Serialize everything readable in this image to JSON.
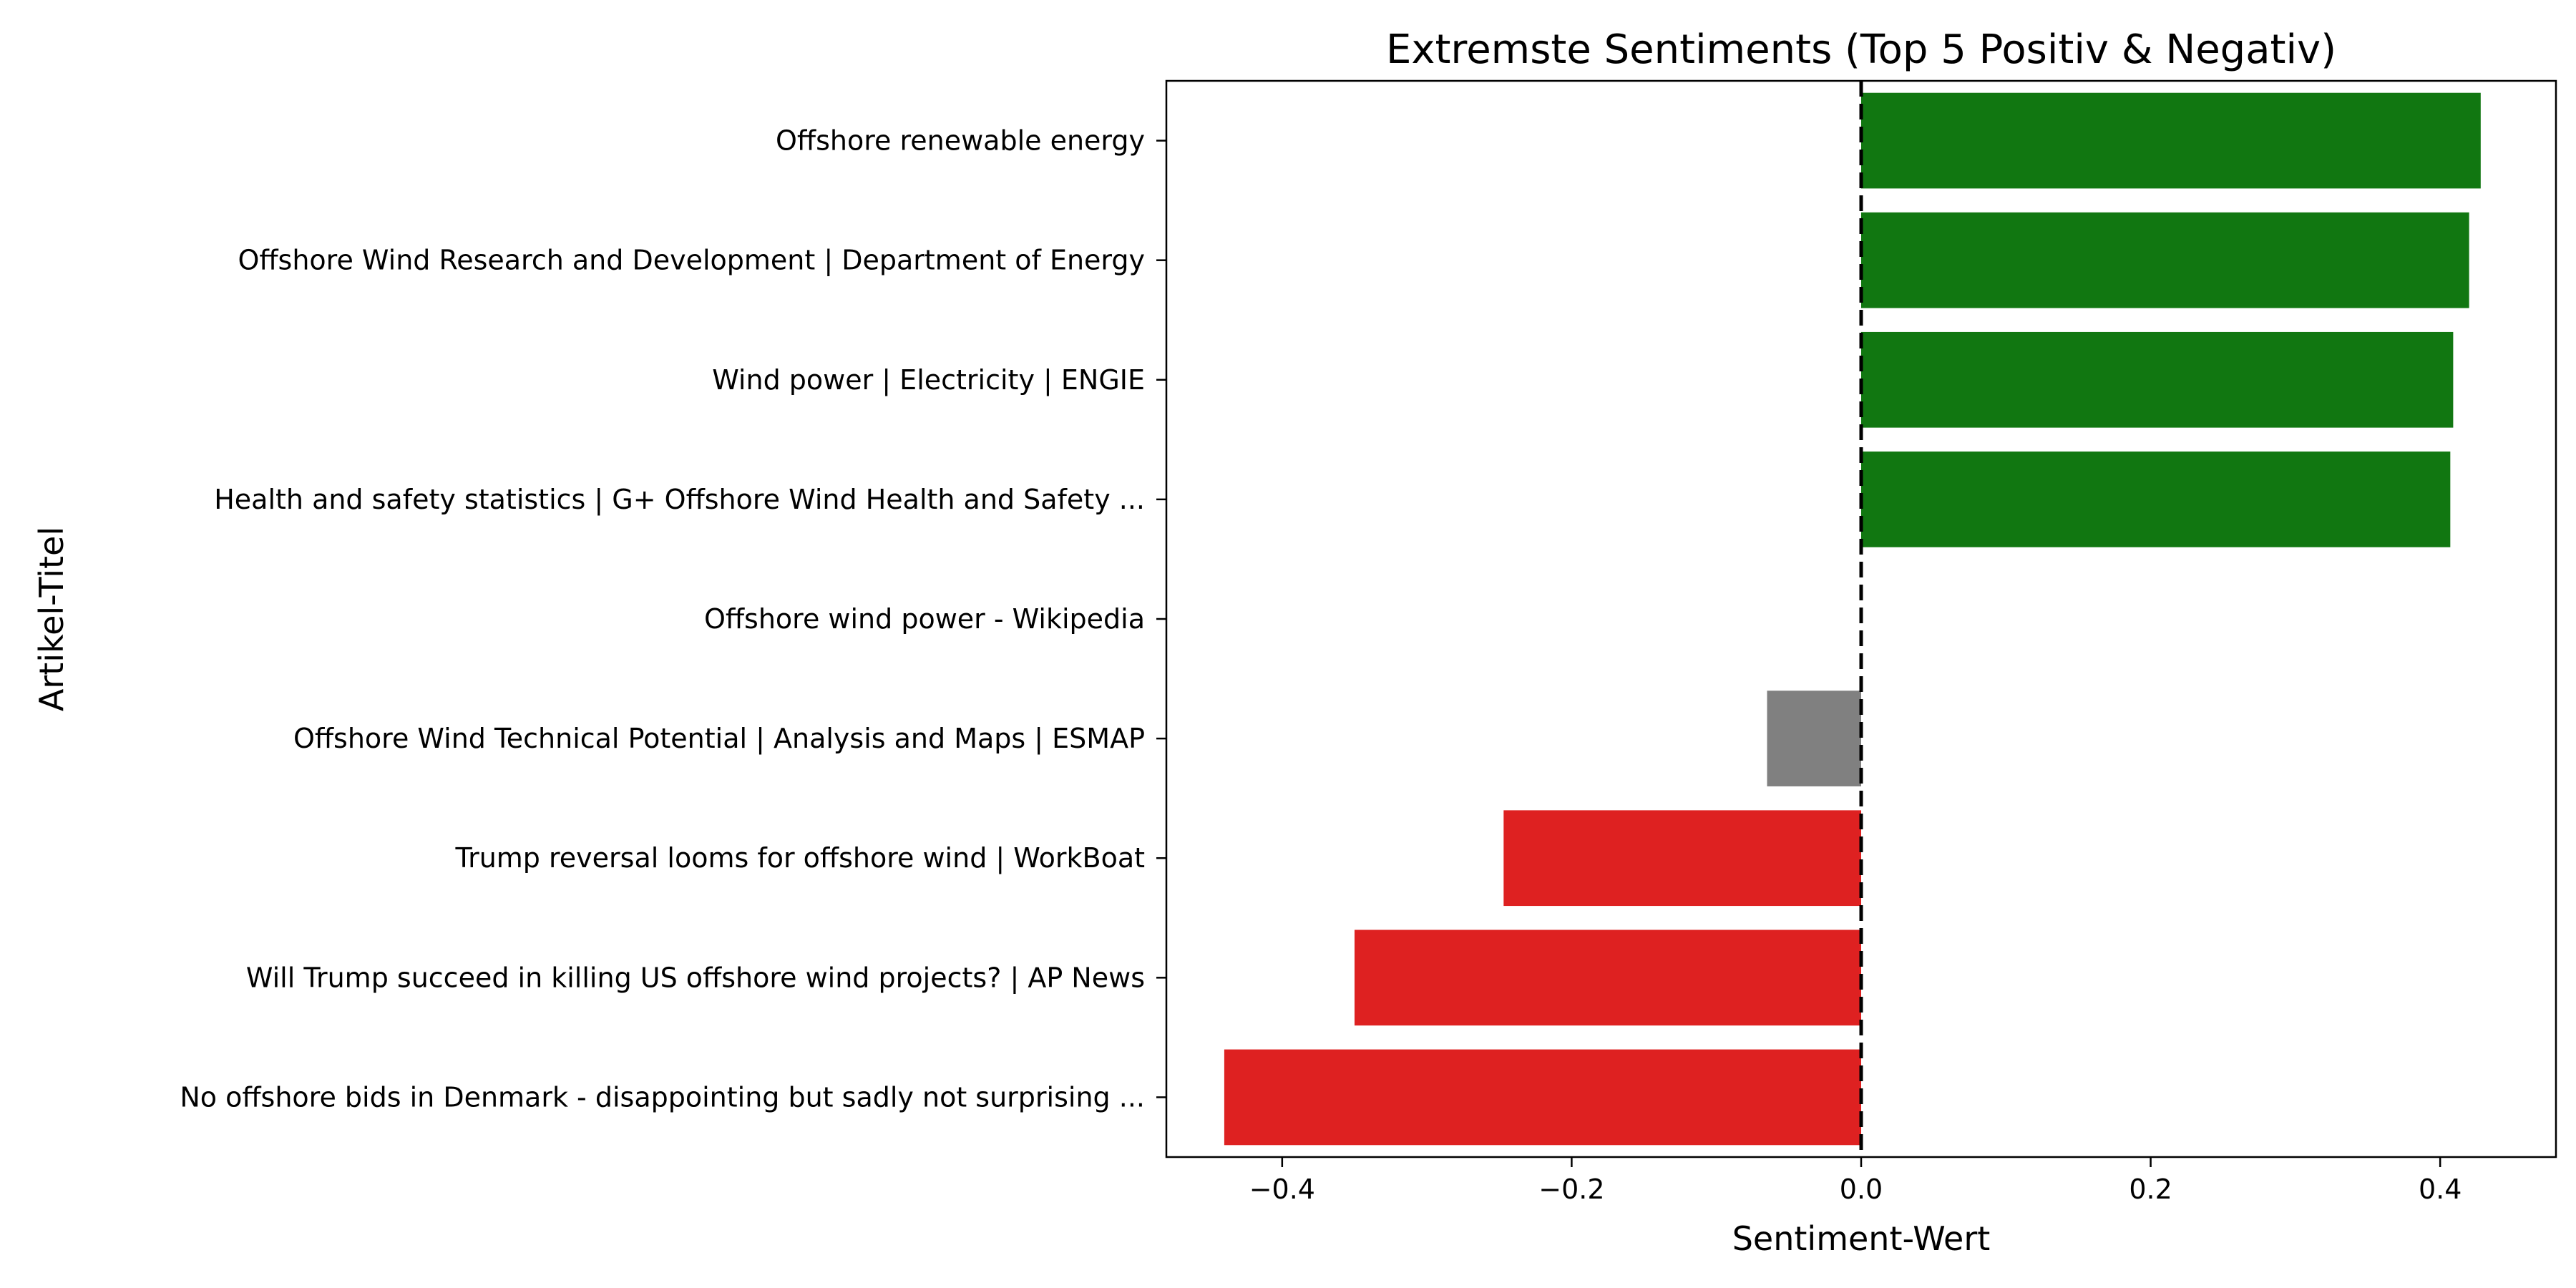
{
  "chart_data": {
    "type": "bar",
    "orientation": "horizontal",
    "title": "Extremste Sentiments (Top 5 Positiv & Negativ)",
    "xlabel": "Sentiment-Wert",
    "ylabel": "Artikel-Titel",
    "xlim": [
      -0.48,
      0.48
    ],
    "xticks": [
      -0.4,
      -0.2,
      0.0,
      0.2,
      0.4
    ],
    "xtick_labels": [
      "−0.4",
      "−0.2",
      "0.0",
      "0.2",
      "0.4"
    ],
    "reference_line": {
      "x": 0.0,
      "style": "dashed",
      "color": "#000000"
    },
    "grid": false,
    "legend": "none",
    "colors": {
      "positive": "#117711",
      "neutral": "#808080",
      "negative": "#de2121"
    },
    "categories": [
      "Offshore renewable energy",
      "Offshore Wind Research and Development | Department of Energy",
      "Wind power | Electricity | ENGIE",
      "Health and safety statistics | G+ Offshore Wind Health and Safety ...",
      "Offshore wind power - Wikipedia",
      "Offshore Wind Technical Potential | Analysis and Maps | ESMAP",
      "Trump reversal looms for offshore wind | WorkBoat",
      "Will Trump succeed in killing US offshore wind projects? | AP News",
      "No offshore bids in Denmark - disappointing but sadly not surprising ..."
    ],
    "values": [
      0.428,
      0.42,
      0.409,
      0.407,
      0.0,
      -0.065,
      -0.247,
      -0.35,
      -0.44
    ],
    "bar_colors": [
      "positive",
      "positive",
      "positive",
      "positive",
      "neutral",
      "neutral",
      "negative",
      "negative",
      "negative"
    ]
  }
}
